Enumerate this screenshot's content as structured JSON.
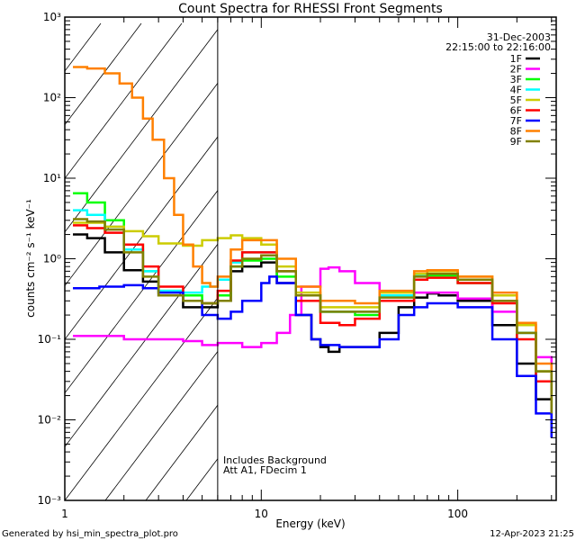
{
  "chart_data": {
    "type": "line",
    "title": "Count Spectra for RHESSI Front Segments",
    "xlabel": "Energy (keV)",
    "ylabel": "counts cm⁻² s⁻¹ keV⁻¹",
    "xscale": "log",
    "yscale": "log",
    "xlim": [
      1,
      317
    ],
    "ylim": [
      0.001,
      1000
    ],
    "xticks": [
      "1",
      "10",
      "100"
    ],
    "yticks": [
      "10⁻³",
      "10⁻²",
      "10⁻¹",
      "10⁰",
      "10¹",
      "10²",
      "10³"
    ],
    "date": "31-Dec-2003",
    "time_range": "22:15:00 to 22:16:00",
    "annotations": [
      "Includes Background",
      "Att A1, FDecim 1"
    ],
    "shaded_region": {
      "xmax_keV": 6
    },
    "legend_position": "top-right",
    "series": [
      {
        "name": "1F",
        "color": "#000000",
        "points": [
          [
            1.1,
            2.0
          ],
          [
            1.3,
            1.8
          ],
          [
            1.6,
            1.2
          ],
          [
            2.0,
            0.72
          ],
          [
            2.5,
            0.52
          ],
          [
            3,
            0.35
          ],
          [
            4,
            0.25
          ],
          [
            5,
            0.25
          ],
          [
            6,
            0.3
          ],
          [
            7,
            0.7
          ],
          [
            8,
            0.8
          ],
          [
            10,
            0.9
          ],
          [
            12,
            0.5
          ],
          [
            15,
            0.2
          ],
          [
            18,
            0.1
          ],
          [
            20,
            0.08
          ],
          [
            22,
            0.07
          ],
          [
            25,
            0.08
          ],
          [
            30,
            0.08
          ],
          [
            40,
            0.12
          ],
          [
            50,
            0.25
          ],
          [
            60,
            0.33
          ],
          [
            70,
            0.37
          ],
          [
            80,
            0.35
          ],
          [
            100,
            0.3
          ],
          [
            150,
            0.15
          ],
          [
            200,
            0.05
          ],
          [
            250,
            0.018
          ],
          [
            300,
            0.009
          ]
        ]
      },
      {
        "name": "2F",
        "color": "#ff00ff",
        "points": [
          [
            1.1,
            0.11
          ],
          [
            1.5,
            0.11
          ],
          [
            2,
            0.1
          ],
          [
            3,
            0.1
          ],
          [
            4,
            0.095
          ],
          [
            5,
            0.085
          ],
          [
            6,
            0.09
          ],
          [
            8,
            0.08
          ],
          [
            10,
            0.09
          ],
          [
            12,
            0.12
          ],
          [
            14,
            0.2
          ],
          [
            16,
            0.45
          ],
          [
            20,
            0.75
          ],
          [
            22,
            0.78
          ],
          [
            25,
            0.7
          ],
          [
            30,
            0.5
          ],
          [
            40,
            0.35
          ],
          [
            60,
            0.38
          ],
          [
            80,
            0.38
          ],
          [
            100,
            0.32
          ],
          [
            150,
            0.22
          ],
          [
            200,
            0.12
          ],
          [
            250,
            0.06
          ],
          [
            300,
            0.03
          ]
        ]
      },
      {
        "name": "3F",
        "color": "#00ff00",
        "points": [
          [
            1.1,
            6.5
          ],
          [
            1.3,
            5.0
          ],
          [
            1.6,
            3.0
          ],
          [
            2.0,
            1.5
          ],
          [
            2.5,
            0.7
          ],
          [
            3,
            0.4
          ],
          [
            4,
            0.35
          ],
          [
            5,
            0.28
          ],
          [
            6,
            0.35
          ],
          [
            7,
            0.8
          ],
          [
            8,
            0.95
          ],
          [
            10,
            1.0
          ],
          [
            12,
            0.6
          ],
          [
            15,
            0.35
          ],
          [
            20,
            0.22
          ],
          [
            30,
            0.2
          ],
          [
            40,
            0.3
          ],
          [
            60,
            0.55
          ],
          [
            70,
            0.62
          ],
          [
            100,
            0.5
          ],
          [
            150,
            0.3
          ],
          [
            200,
            0.12
          ],
          [
            250,
            0.04
          ],
          [
            300,
            0.012
          ]
        ]
      },
      {
        "name": "4F",
        "color": "#00ffff",
        "points": [
          [
            1.1,
            4.0
          ],
          [
            1.3,
            3.5
          ],
          [
            1.6,
            2.5
          ],
          [
            2.0,
            1.3
          ],
          [
            2.5,
            0.7
          ],
          [
            3,
            0.4
          ],
          [
            4,
            0.38
          ],
          [
            5,
            0.45
          ],
          [
            6,
            0.55
          ],
          [
            7,
            0.9
          ],
          [
            8,
            1.2
          ],
          [
            10,
            1.2
          ],
          [
            12,
            0.7
          ],
          [
            15,
            0.35
          ],
          [
            20,
            0.22
          ],
          [
            30,
            0.22
          ],
          [
            40,
            0.35
          ],
          [
            60,
            0.62
          ],
          [
            70,
            0.65
          ],
          [
            100,
            0.55
          ],
          [
            150,
            0.3
          ],
          [
            200,
            0.12
          ],
          [
            250,
            0.03
          ],
          [
            300,
            0.008
          ]
        ]
      },
      {
        "name": "5F",
        "color": "#cccc00",
        "points": [
          [
            1.1,
            2.8
          ],
          [
            1.6,
            2.5
          ],
          [
            2.0,
            2.2
          ],
          [
            2.5,
            1.9
          ],
          [
            3,
            1.55
          ],
          [
            4,
            1.45
          ],
          [
            5,
            1.7
          ],
          [
            6,
            1.8
          ],
          [
            7,
            1.95
          ],
          [
            8,
            1.8
          ],
          [
            10,
            1.5
          ],
          [
            12,
            0.8
          ],
          [
            15,
            0.38
          ],
          [
            20,
            0.25
          ],
          [
            30,
            0.25
          ],
          [
            40,
            0.38
          ],
          [
            60,
            0.65
          ],
          [
            70,
            0.7
          ],
          [
            100,
            0.6
          ],
          [
            150,
            0.35
          ],
          [
            200,
            0.15
          ],
          [
            250,
            0.04
          ],
          [
            300,
            0.012
          ]
        ]
      },
      {
        "name": "6F",
        "color": "#ff0000",
        "points": [
          [
            1.1,
            2.6
          ],
          [
            1.3,
            2.4
          ],
          [
            1.6,
            2.1
          ],
          [
            2.0,
            1.5
          ],
          [
            2.5,
            0.8
          ],
          [
            3,
            0.45
          ],
          [
            4,
            0.3
          ],
          [
            5,
            0.28
          ],
          [
            6,
            0.4
          ],
          [
            7,
            0.95
          ],
          [
            8,
            1.2
          ],
          [
            10,
            1.2
          ],
          [
            12,
            0.7
          ],
          [
            15,
            0.3
          ],
          [
            20,
            0.16
          ],
          [
            25,
            0.15
          ],
          [
            30,
            0.18
          ],
          [
            40,
            0.3
          ],
          [
            60,
            0.55
          ],
          [
            70,
            0.58
          ],
          [
            100,
            0.5
          ],
          [
            150,
            0.28
          ],
          [
            200,
            0.1
          ],
          [
            250,
            0.03
          ],
          [
            300,
            0.01
          ]
        ]
      },
      {
        "name": "7F",
        "color": "#0000ff",
        "points": [
          [
            1.1,
            0.43
          ],
          [
            1.5,
            0.45
          ],
          [
            2,
            0.47
          ],
          [
            2.5,
            0.43
          ],
          [
            3,
            0.38
          ],
          [
            4,
            0.3
          ],
          [
            5,
            0.2
          ],
          [
            6,
            0.18
          ],
          [
            7,
            0.22
          ],
          [
            8,
            0.3
          ],
          [
            10,
            0.5
          ],
          [
            11,
            0.6
          ],
          [
            12,
            0.5
          ],
          [
            15,
            0.2
          ],
          [
            18,
            0.1
          ],
          [
            20,
            0.085
          ],
          [
            25,
            0.08
          ],
          [
            30,
            0.08
          ],
          [
            40,
            0.1
          ],
          [
            50,
            0.2
          ],
          [
            60,
            0.25
          ],
          [
            70,
            0.28
          ],
          [
            100,
            0.25
          ],
          [
            150,
            0.1
          ],
          [
            200,
            0.035
          ],
          [
            250,
            0.012
          ],
          [
            300,
            0.006
          ]
        ]
      },
      {
        "name": "8F",
        "color": "#ff8000",
        "points": [
          [
            1.1,
            240
          ],
          [
            1.3,
            230
          ],
          [
            1.6,
            200
          ],
          [
            1.9,
            150
          ],
          [
            2.2,
            100
          ],
          [
            2.5,
            55
          ],
          [
            2.8,
            30
          ],
          [
            3.2,
            10
          ],
          [
            3.6,
            3.5
          ],
          [
            4.0,
            1.5
          ],
          [
            4.5,
            0.8
          ],
          [
            5,
            0.5
          ],
          [
            5.5,
            0.45
          ],
          [
            6,
            0.6
          ],
          [
            7,
            1.3
          ],
          [
            8,
            1.7
          ],
          [
            10,
            1.7
          ],
          [
            12,
            1.0
          ],
          [
            15,
            0.45
          ],
          [
            20,
            0.3
          ],
          [
            30,
            0.28
          ],
          [
            40,
            0.4
          ],
          [
            60,
            0.7
          ],
          [
            70,
            0.72
          ],
          [
            100,
            0.6
          ],
          [
            150,
            0.38
          ],
          [
            200,
            0.16
          ],
          [
            250,
            0.05
          ],
          [
            300,
            0.014
          ]
        ]
      },
      {
        "name": "9F",
        "color": "#808000",
        "points": [
          [
            1.1,
            3.1
          ],
          [
            1.3,
            2.9
          ],
          [
            1.6,
            2.3
          ],
          [
            2.0,
            1.2
          ],
          [
            2.5,
            0.6
          ],
          [
            3,
            0.35
          ],
          [
            4,
            0.3
          ],
          [
            5,
            0.28
          ],
          [
            6,
            0.3
          ],
          [
            7,
            0.8
          ],
          [
            8,
            1.0
          ],
          [
            10,
            1.1
          ],
          [
            12,
            0.7
          ],
          [
            15,
            0.35
          ],
          [
            20,
            0.22
          ],
          [
            30,
            0.22
          ],
          [
            40,
            0.33
          ],
          [
            60,
            0.6
          ],
          [
            70,
            0.65
          ],
          [
            100,
            0.55
          ],
          [
            150,
            0.3
          ],
          [
            200,
            0.12
          ],
          [
            250,
            0.04
          ],
          [
            300,
            0.012
          ]
        ]
      }
    ]
  },
  "footer": {
    "left": "Generated by hsi_min_spectra_plot.pro",
    "right": "12-Apr-2023 21:25"
  }
}
